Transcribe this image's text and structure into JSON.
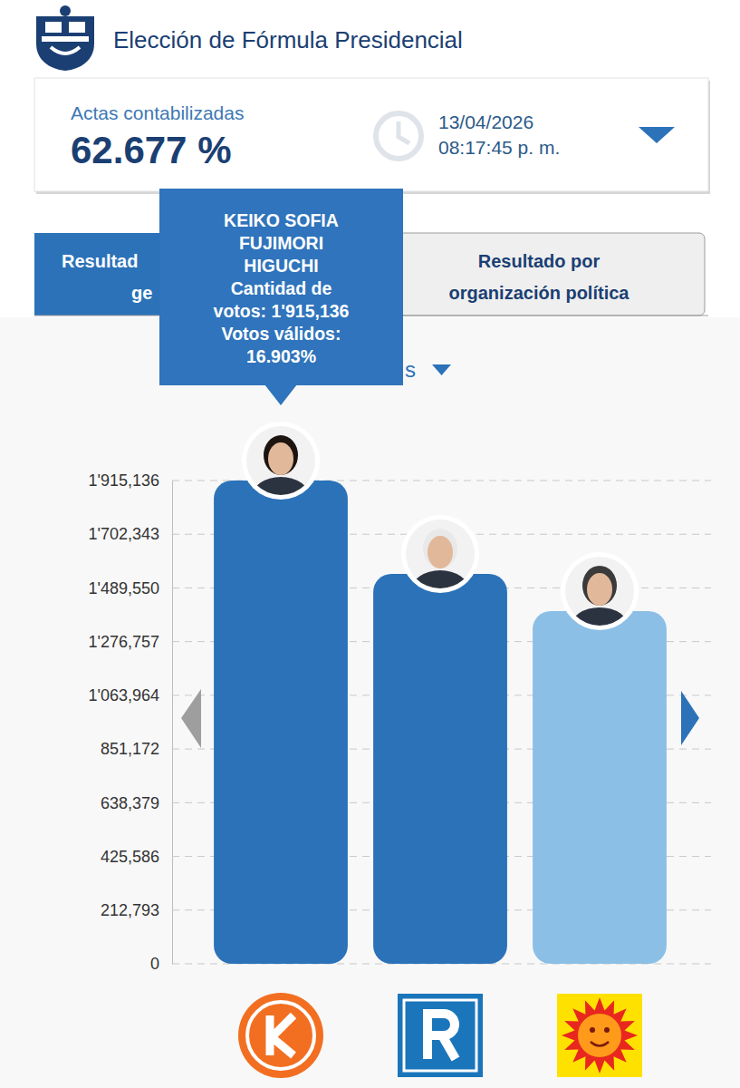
{
  "header": {
    "title": "Elección de Fórmula Presidencial"
  },
  "summary": {
    "label": "Actas contabilizadas",
    "value": "62.677 %",
    "date": "13/04/2026",
    "time": "08:17:45 p. m."
  },
  "tabs": [
    {
      "lines": [
        "Resultad",
        "ge"
      ]
    },
    {
      "lines": [
        "Resultado por",
        "organización política"
      ]
    }
  ],
  "selector": "s",
  "tooltip": {
    "lines": [
      "KEIKO SOFIA",
      "FUJIMORI",
      "HIGUCHI",
      "Cantidad de",
      "votos: 1'915,136",
      "Votos válidos:",
      "16.903%"
    ]
  },
  "chart_data": {
    "type": "bar",
    "categories": [
      null,
      null,
      null
    ],
    "values": [
      1915136,
      1545000,
      1398000
    ],
    "colors": [
      "#2b72b9",
      "#2b72b9",
      "#8bbfe6"
    ],
    "ylim": [
      0,
      1915136
    ],
    "yticks": [
      0,
      {
        "value": 212793,
        "label": "212,793"
      },
      {
        "value": 425586,
        "label": "425,586"
      },
      {
        "value": 638379,
        "label": "638,379"
      },
      {
        "value": 851172,
        "label": "851,172"
      },
      {
        "value": 1063964,
        "label": "1'063,964"
      },
      {
        "value": 1276757,
        "label": "1'276,757"
      },
      {
        "value": 1489550,
        "label": "1'489,550"
      },
      {
        "value": 1702343,
        "label": "1'702,343"
      },
      {
        "value": 1915136,
        "label": "1'915,136"
      }
    ],
    "grid": true,
    "tick_labels": "y"
  }
}
